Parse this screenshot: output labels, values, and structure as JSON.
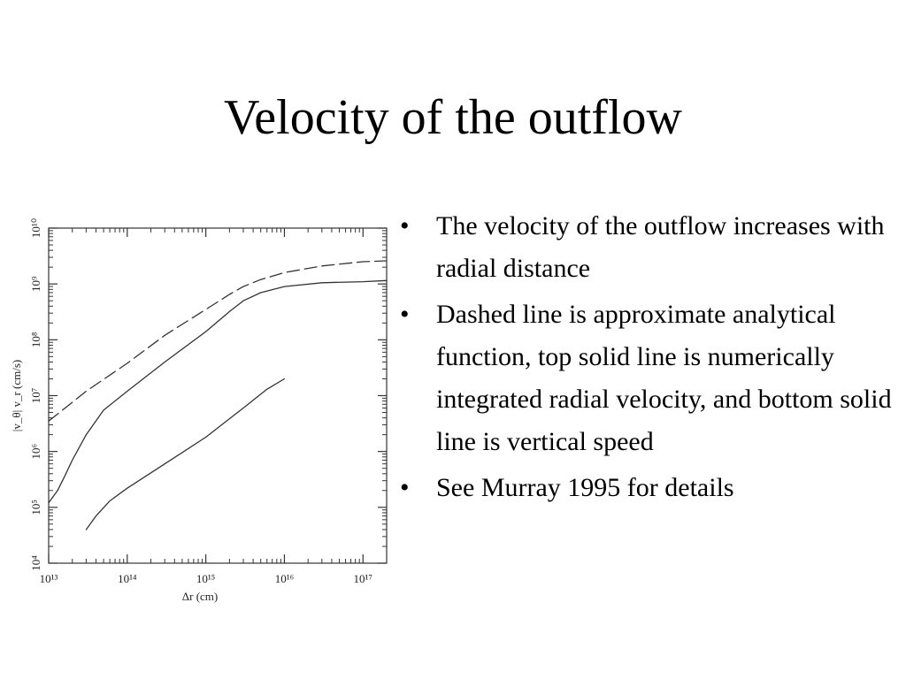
{
  "slide": {
    "title": "Velocity of the outflow",
    "bullets": [
      {
        "marker": "•",
        "text": "The velocity of the outflow increases with radial distance"
      },
      {
        "marker": "•",
        "text": "Dashed line is approximate analytical function, top solid line is numerically integrated radial velocity, and bottom solid line is vertical speed"
      },
      {
        "marker": "•",
        "text": "See Murray 1995 for details"
      }
    ]
  },
  "chart_data": {
    "type": "line",
    "xscale": "log",
    "yscale": "log",
    "xlim": [
      10000000000000.0,
      2e+17
    ],
    "ylim": [
      10000.0,
      10000000000.0
    ],
    "xlabel": "Δr (cm)",
    "ylabel": "|v_θ|   v_r (cm/s)",
    "xticks": [
      {
        "value": 10000000000000.0,
        "label": "10¹³"
      },
      {
        "value": 100000000000000.0,
        "label": "10¹⁴"
      },
      {
        "value": 1000000000000000.0,
        "label": "10¹⁵"
      },
      {
        "value": 1e+16,
        "label": "10¹⁶"
      },
      {
        "value": 1e+17,
        "label": "10¹⁷"
      }
    ],
    "yticks": [
      {
        "value": 10000.0,
        "label": "10⁴"
      },
      {
        "value": 100000.0,
        "label": "10⁵"
      },
      {
        "value": 1000000.0,
        "label": "10⁶"
      },
      {
        "value": 10000000.0,
        "label": "10⁷"
      },
      {
        "value": 100000000.0,
        "label": "10⁸"
      },
      {
        "value": 1000000000.0,
        "label": "10⁹"
      },
      {
        "value": 10000000000.0,
        "label": "10¹⁰"
      }
    ],
    "grid": false,
    "series": [
      {
        "style": "dashed",
        "x": [
          10000000000000.0,
          30000000000000.0,
          100000000000000.0,
          300000000000000.0,
          1000000000000000.0,
          2000000000000000.0,
          3000000000000000.0,
          5000000000000000.0,
          1e+16,
          3e+16,
          1e+17,
          2e+17
        ],
        "y": [
          3500000.0,
          12000000.0,
          38000000.0,
          120000000.0,
          350000000.0,
          650000000.0,
          900000000.0,
          1200000000.0,
          1600000000.0,
          2100000000.0,
          2500000000.0,
          2600000000.0
        ]
      },
      {
        "style": "solid",
        "x": [
          10000000000000.0,
          13000000000000.0,
          16000000000000.0,
          20000000000000.0,
          30000000000000.0,
          50000000000000.0,
          100000000000000.0,
          300000000000000.0,
          1000000000000000.0,
          2000000000000000.0,
          3000000000000000.0,
          5000000000000000.0,
          1e+16,
          3e+16,
          1e+17,
          2e+17
        ],
        "y": [
          120000.0,
          200000.0,
          360000.0,
          700000.0,
          2000000.0,
          5500000.0,
          12000000.0,
          40000000.0,
          140000000.0,
          320000000.0,
          500000000.0,
          700000000.0,
          900000000.0,
          1050000000.0,
          1100000000.0,
          1150000000.0
        ]
      },
      {
        "style": "solid",
        "x": [
          30000000000000.0,
          40000000000000.0,
          60000000000000.0,
          100000000000000.0,
          300000000000000.0,
          1000000000000000.0,
          3000000000000000.0,
          6000000000000000.0,
          1e+16
        ],
        "y": [
          40000.0,
          70000.0,
          130000.0,
          220000.0,
          600000.0,
          1800000.0,
          6000000.0,
          13000000.0,
          20000000.0
        ]
      }
    ]
  }
}
